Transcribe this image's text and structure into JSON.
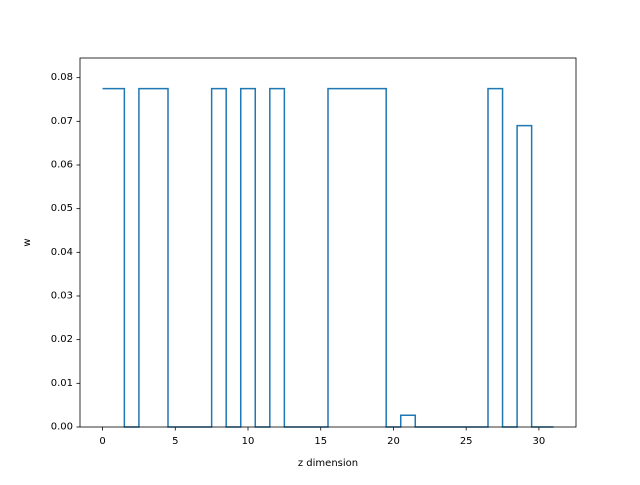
{
  "chart_data": {
    "type": "line",
    "drawstyle": "steps-mid",
    "title": "",
    "xlabel": "z dimension",
    "ylabel": "w",
    "xlim": [
      -1.55,
      32.55
    ],
    "ylim": [
      0.0,
      0.0845
    ],
    "xticks": [
      0,
      5,
      10,
      15,
      20,
      25,
      30
    ],
    "xtick_labels": [
      "0",
      "5",
      "10",
      "15",
      "20",
      "25",
      "30"
    ],
    "yticks": [
      0.0,
      0.01,
      0.02,
      0.03,
      0.04,
      0.05,
      0.06,
      0.07,
      0.08
    ],
    "ytick_labels": [
      "0.00",
      "0.01",
      "0.02",
      "0.03",
      "0.04",
      "0.05",
      "0.06",
      "0.07",
      "0.08"
    ],
    "grid": false,
    "legend": false,
    "series": [
      {
        "color": "#1f77b4",
        "x": [
          0,
          1,
          2,
          3,
          4,
          5,
          6,
          7,
          8,
          9,
          10,
          11,
          12,
          13,
          14,
          15,
          16,
          17,
          18,
          19,
          20,
          21,
          22,
          23,
          24,
          25,
          26,
          27,
          28,
          29,
          30,
          31
        ],
        "y": [
          0.0775,
          0.0775,
          0.0,
          0.0775,
          0.0775,
          0.0,
          0.0,
          0.0,
          0.0775,
          0.0,
          0.0775,
          0.0,
          0.0775,
          0.0,
          0.0,
          0.0,
          0.0775,
          0.0775,
          0.0775,
          0.0775,
          0.0,
          0.0027,
          0.0,
          0.0,
          0.0,
          0.0,
          0.0,
          0.0775,
          0.0,
          0.069,
          0.0,
          0.0
        ]
      }
    ]
  }
}
